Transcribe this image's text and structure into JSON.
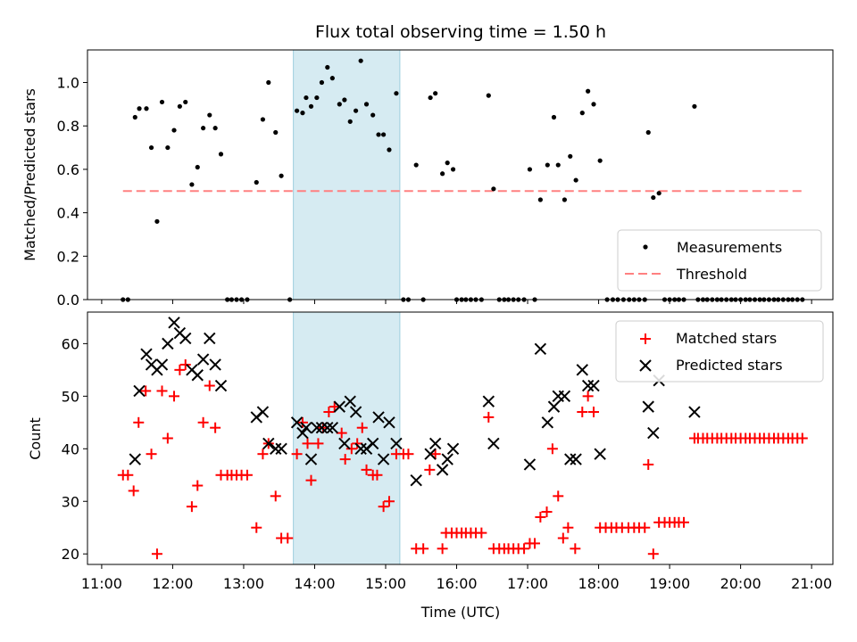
{
  "chart_data": {
    "title": "Flux total observing time = 1.50 h",
    "xlabel": "Time (UTC)",
    "x_unit": "hours UTC",
    "xlim": [
      10.8,
      21.3
    ],
    "xticks": [
      {
        "v": 11,
        "label": "11:00"
      },
      {
        "v": 12,
        "label": "12:00"
      },
      {
        "v": 13,
        "label": "13:00"
      },
      {
        "v": 14,
        "label": "14:00"
      },
      {
        "v": 15,
        "label": "15:00"
      },
      {
        "v": 16,
        "label": "16:00"
      },
      {
        "v": 17,
        "label": "17:00"
      },
      {
        "v": 18,
        "label": "18:00"
      },
      {
        "v": 19,
        "label": "19:00"
      },
      {
        "v": 20,
        "label": "20:00"
      },
      {
        "v": 21,
        "label": "21:00"
      }
    ],
    "highlight_span": [
      13.7,
      15.2
    ],
    "highlight_color": "#add8e6",
    "top": {
      "type": "scatter",
      "ylabel": "Matched/Predicted stars",
      "ylim": [
        0,
        1.15
      ],
      "yticks": [
        {
          "v": 0,
          "label": "0.0"
        },
        {
          "v": 0.2,
          "label": "0.2"
        },
        {
          "v": 0.4,
          "label": "0.4"
        },
        {
          "v": 0.6,
          "label": "0.6"
        },
        {
          "v": 0.8,
          "label": "0.8"
        },
        {
          "v": 1.0,
          "label": "1.0"
        }
      ],
      "threshold": {
        "value": 0.5,
        "x_from": 11.3,
        "x_to": 20.87,
        "color": "#ff8080"
      },
      "legend": [
        {
          "label": "Measurements",
          "kind": "dot"
        },
        {
          "label": "Threshold",
          "kind": "dash"
        }
      ],
      "measurements": [
        [
          11.3,
          0
        ],
        [
          11.37,
          0
        ],
        [
          11.47,
          0.84
        ],
        [
          11.53,
          0.88
        ],
        [
          11.63,
          0.88
        ],
        [
          11.7,
          0.7
        ],
        [
          11.78,
          0.36
        ],
        [
          11.85,
          0.91
        ],
        [
          11.93,
          0.7
        ],
        [
          12.02,
          0.78
        ],
        [
          12.1,
          0.89
        ],
        [
          12.18,
          0.91
        ],
        [
          12.27,
          0.53
        ],
        [
          12.35,
          0.61
        ],
        [
          12.43,
          0.79
        ],
        [
          12.52,
          0.85
        ],
        [
          12.6,
          0.79
        ],
        [
          12.68,
          0.67
        ],
        [
          12.77,
          0
        ],
        [
          12.83,
          0
        ],
        [
          12.9,
          0
        ],
        [
          12.97,
          0
        ],
        [
          13.05,
          0
        ],
        [
          13.18,
          0.54
        ],
        [
          13.27,
          0.83
        ],
        [
          13.35,
          1.0
        ],
        [
          13.45,
          0.77
        ],
        [
          13.53,
          0.57
        ],
        [
          13.65,
          0
        ],
        [
          13.75,
          0.87
        ],
        [
          13.83,
          0.86
        ],
        [
          13.88,
          0.93
        ],
        [
          13.95,
          0.89
        ],
        [
          14.03,
          0.93
        ],
        [
          14.1,
          1.0
        ],
        [
          14.18,
          1.07
        ],
        [
          14.25,
          1.02
        ],
        [
          14.35,
          0.9
        ],
        [
          14.42,
          0.92
        ],
        [
          14.5,
          0.82
        ],
        [
          14.58,
          0.87
        ],
        [
          14.65,
          1.1
        ],
        [
          14.73,
          0.9
        ],
        [
          14.82,
          0.85
        ],
        [
          14.9,
          0.76
        ],
        [
          14.97,
          0.76
        ],
        [
          15.05,
          0.69
        ],
        [
          15.15,
          0.95
        ],
        [
          15.25,
          0
        ],
        [
          15.32,
          0
        ],
        [
          15.43,
          0.62
        ],
        [
          15.53,
          0
        ],
        [
          15.63,
          0.93
        ],
        [
          15.7,
          0.95
        ],
        [
          15.8,
          0.58
        ],
        [
          15.87,
          0.63
        ],
        [
          15.95,
          0.6
        ],
        [
          16.0,
          0
        ],
        [
          16.07,
          0
        ],
        [
          16.13,
          0
        ],
        [
          16.2,
          0
        ],
        [
          16.27,
          0
        ],
        [
          16.35,
          0
        ],
        [
          16.45,
          0.94
        ],
        [
          16.52,
          0.51
        ],
        [
          16.6,
          0
        ],
        [
          16.67,
          0
        ],
        [
          16.73,
          0
        ],
        [
          16.8,
          0
        ],
        [
          16.87,
          0
        ],
        [
          16.95,
          0
        ],
        [
          17.03,
          0.6
        ],
        [
          17.1,
          0
        ],
        [
          17.18,
          0.46
        ],
        [
          17.28,
          0.62
        ],
        [
          17.37,
          0.84
        ],
        [
          17.43,
          0.62
        ],
        [
          17.52,
          0.46
        ],
        [
          17.6,
          0.66
        ],
        [
          17.68,
          0.55
        ],
        [
          17.77,
          0.86
        ],
        [
          17.85,
          0.96
        ],
        [
          17.93,
          0.9
        ],
        [
          18.02,
          0.64
        ],
        [
          18.12,
          0
        ],
        [
          18.2,
          0
        ],
        [
          18.27,
          0
        ],
        [
          18.35,
          0
        ],
        [
          18.43,
          0
        ],
        [
          18.5,
          0
        ],
        [
          18.57,
          0
        ],
        [
          18.65,
          0
        ],
        [
          18.7,
          0.77
        ],
        [
          18.77,
          0.47
        ],
        [
          18.85,
          0.49
        ],
        [
          18.93,
          0
        ],
        [
          19.0,
          0
        ],
        [
          19.07,
          0
        ],
        [
          19.13,
          0
        ],
        [
          19.2,
          0
        ],
        [
          19.35,
          0.89
        ],
        [
          19.4,
          0
        ],
        [
          19.47,
          0
        ],
        [
          19.53,
          0
        ],
        [
          19.6,
          0
        ],
        [
          19.67,
          0
        ],
        [
          19.73,
          0
        ],
        [
          19.8,
          0
        ],
        [
          19.87,
          0
        ],
        [
          19.93,
          0
        ],
        [
          20.0,
          0
        ],
        [
          20.07,
          0
        ],
        [
          20.13,
          0
        ],
        [
          20.2,
          0
        ],
        [
          20.27,
          0
        ],
        [
          20.33,
          0
        ],
        [
          20.4,
          0
        ],
        [
          20.47,
          0
        ],
        [
          20.53,
          0
        ],
        [
          20.6,
          0
        ],
        [
          20.67,
          0
        ],
        [
          20.73,
          0
        ],
        [
          20.8,
          0
        ],
        [
          20.87,
          0
        ]
      ]
    },
    "bottom": {
      "type": "scatter",
      "ylabel": "Count",
      "ylim": [
        18,
        66
      ],
      "yticks": [
        {
          "v": 20,
          "label": "20"
        },
        {
          "v": 30,
          "label": "30"
        },
        {
          "v": 40,
          "label": "40"
        },
        {
          "v": 50,
          "label": "50"
        },
        {
          "v": 60,
          "label": "60"
        }
      ],
      "legend": [
        {
          "label": "Matched stars",
          "kind": "plus"
        },
        {
          "label": "Predicted stars",
          "kind": "x"
        }
      ],
      "matched": [
        [
          11.3,
          35
        ],
        [
          11.37,
          35
        ],
        [
          11.45,
          32
        ],
        [
          11.52,
          45
        ],
        [
          11.62,
          51
        ],
        [
          11.7,
          39
        ],
        [
          11.78,
          20
        ],
        [
          11.85,
          51
        ],
        [
          11.93,
          42
        ],
        [
          12.02,
          50
        ],
        [
          12.1,
          55
        ],
        [
          12.18,
          56
        ],
        [
          12.27,
          29
        ],
        [
          12.35,
          33
        ],
        [
          12.43,
          45
        ],
        [
          12.52,
          52
        ],
        [
          12.6,
          44
        ],
        [
          12.68,
          35
        ],
        [
          12.77,
          35
        ],
        [
          12.83,
          35
        ],
        [
          12.9,
          35
        ],
        [
          12.97,
          35
        ],
        [
          13.05,
          35
        ],
        [
          13.18,
          25
        ],
        [
          13.27,
          39
        ],
        [
          13.35,
          41
        ],
        [
          13.45,
          31
        ],
        [
          13.53,
          23
        ],
        [
          13.62,
          23
        ],
        [
          13.75,
          39
        ],
        [
          13.83,
          45
        ],
        [
          13.9,
          41
        ],
        [
          13.95,
          34
        ],
        [
          14.05,
          41
        ],
        [
          14.12,
          44
        ],
        [
          14.2,
          47
        ],
        [
          14.28,
          48
        ],
        [
          14.38,
          43
        ],
        [
          14.43,
          38
        ],
        [
          14.52,
          40
        ],
        [
          14.6,
          41
        ],
        [
          14.67,
          44
        ],
        [
          14.73,
          36
        ],
        [
          14.82,
          35
        ],
        [
          14.88,
          35
        ],
        [
          14.97,
          29
        ],
        [
          15.05,
          30
        ],
        [
          15.15,
          39
        ],
        [
          15.25,
          39
        ],
        [
          15.32,
          39
        ],
        [
          15.43,
          21
        ],
        [
          15.53,
          21
        ],
        [
          15.62,
          36
        ],
        [
          15.7,
          39
        ],
        [
          15.8,
          21
        ],
        [
          15.85,
          24
        ],
        [
          15.93,
          24
        ],
        [
          16.0,
          24
        ],
        [
          16.07,
          24
        ],
        [
          16.13,
          24
        ],
        [
          16.2,
          24
        ],
        [
          16.27,
          24
        ],
        [
          16.35,
          24
        ],
        [
          16.45,
          46
        ],
        [
          16.52,
          21
        ],
        [
          16.6,
          21
        ],
        [
          16.67,
          21
        ],
        [
          16.73,
          21
        ],
        [
          16.8,
          21
        ],
        [
          16.87,
          21
        ],
        [
          16.95,
          21
        ],
        [
          17.03,
          22
        ],
        [
          17.1,
          22
        ],
        [
          17.18,
          27
        ],
        [
          17.27,
          28
        ],
        [
          17.35,
          40
        ],
        [
          17.43,
          31
        ],
        [
          17.5,
          23
        ],
        [
          17.57,
          25
        ],
        [
          17.67,
          21
        ],
        [
          17.77,
          47
        ],
        [
          17.85,
          50
        ],
        [
          17.93,
          47
        ],
        [
          18.02,
          25
        ],
        [
          18.1,
          25
        ],
        [
          18.18,
          25
        ],
        [
          18.25,
          25
        ],
        [
          18.33,
          25
        ],
        [
          18.42,
          25
        ],
        [
          18.5,
          25
        ],
        [
          18.57,
          25
        ],
        [
          18.65,
          25
        ],
        [
          18.7,
          37
        ],
        [
          18.77,
          20
        ],
        [
          18.85,
          26
        ],
        [
          18.93,
          26
        ],
        [
          19.0,
          26
        ],
        [
          19.07,
          26
        ],
        [
          19.13,
          26
        ],
        [
          19.2,
          26
        ],
        [
          19.35,
          42
        ],
        [
          19.4,
          42
        ],
        [
          19.47,
          42
        ],
        [
          19.53,
          42
        ],
        [
          19.6,
          42
        ],
        [
          19.67,
          42
        ],
        [
          19.73,
          42
        ],
        [
          19.8,
          42
        ],
        [
          19.87,
          42
        ],
        [
          19.93,
          42
        ],
        [
          20.0,
          42
        ],
        [
          20.07,
          42
        ],
        [
          20.13,
          42
        ],
        [
          20.2,
          42
        ],
        [
          20.27,
          42
        ],
        [
          20.33,
          42
        ],
        [
          20.4,
          42
        ],
        [
          20.47,
          42
        ],
        [
          20.53,
          42
        ],
        [
          20.6,
          42
        ],
        [
          20.67,
          42
        ],
        [
          20.73,
          42
        ],
        [
          20.8,
          42
        ],
        [
          20.87,
          42
        ]
      ],
      "predicted": [
        [
          11.47,
          38
        ],
        [
          11.53,
          51
        ],
        [
          11.63,
          58
        ],
        [
          11.7,
          56
        ],
        [
          11.78,
          55
        ],
        [
          11.85,
          56
        ],
        [
          11.93,
          60
        ],
        [
          12.02,
          64
        ],
        [
          12.1,
          62
        ],
        [
          12.18,
          61
        ],
        [
          12.27,
          55
        ],
        [
          12.35,
          54
        ],
        [
          12.43,
          57
        ],
        [
          12.52,
          61
        ],
        [
          12.6,
          56
        ],
        [
          12.68,
          52
        ],
        [
          13.18,
          46
        ],
        [
          13.27,
          47
        ],
        [
          13.35,
          41
        ],
        [
          13.45,
          40
        ],
        [
          13.53,
          40
        ],
        [
          13.75,
          45
        ],
        [
          13.83,
          43
        ],
        [
          13.88,
          44
        ],
        [
          13.95,
          38
        ],
        [
          14.03,
          44
        ],
        [
          14.1,
          44
        ],
        [
          14.18,
          44
        ],
        [
          14.25,
          44
        ],
        [
          14.35,
          48
        ],
        [
          14.42,
          41
        ],
        [
          14.5,
          49
        ],
        [
          14.58,
          47
        ],
        [
          14.65,
          40
        ],
        [
          14.73,
          40
        ],
        [
          14.82,
          41
        ],
        [
          14.9,
          46
        ],
        [
          14.97,
          38
        ],
        [
          15.05,
          45
        ],
        [
          15.15,
          41
        ],
        [
          15.43,
          34
        ],
        [
          15.63,
          39
        ],
        [
          15.7,
          41
        ],
        [
          15.8,
          36
        ],
        [
          15.87,
          38
        ],
        [
          15.95,
          40
        ],
        [
          16.45,
          49
        ],
        [
          16.52,
          41
        ],
        [
          17.03,
          37
        ],
        [
          17.18,
          59
        ],
        [
          17.28,
          45
        ],
        [
          17.37,
          48
        ],
        [
          17.43,
          50
        ],
        [
          17.52,
          50
        ],
        [
          17.6,
          38
        ],
        [
          17.68,
          38
        ],
        [
          17.77,
          55
        ],
        [
          17.85,
          52
        ],
        [
          17.93,
          52
        ],
        [
          18.02,
          39
        ],
        [
          18.7,
          48
        ],
        [
          18.77,
          43
        ],
        [
          18.85,
          53
        ],
        [
          19.35,
          47
        ]
      ]
    }
  }
}
